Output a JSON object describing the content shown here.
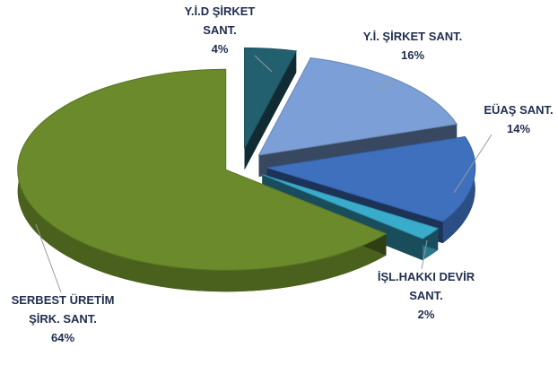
{
  "chart_data": {
    "type": "pie",
    "categories": [
      "Y.İ.D  ŞİRKET SANT.",
      "Y.İ. ŞİRKET SANT.",
      "EÜAŞ SANT.",
      "İŞL.HAKKI DEVİR SANT.",
      "SERBEST ÜRETİM ŞİRK. SANT."
    ],
    "values": [
      4,
      16,
      14,
      2,
      64
    ],
    "value_labels": [
      "4%",
      "16%",
      "14%",
      "2%",
      "64%"
    ],
    "colors": [
      "#23606f",
      "#7b9fd6",
      "#3e70be",
      "#3aaccb",
      "#6a8a2b"
    ]
  }
}
